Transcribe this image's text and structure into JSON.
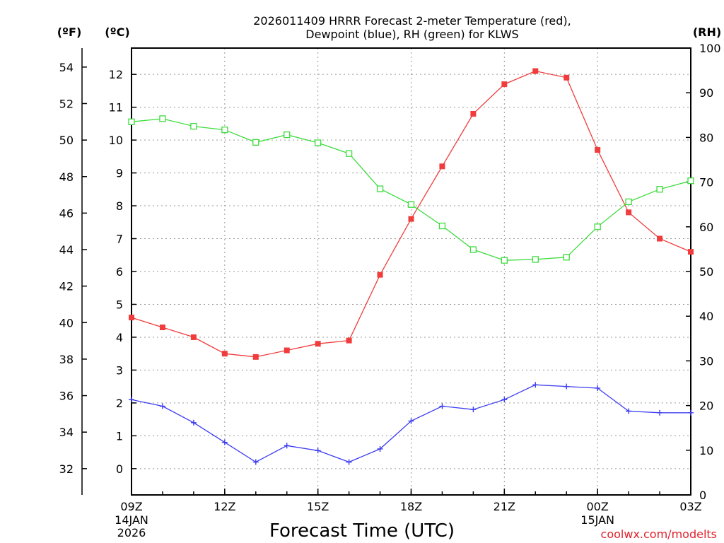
{
  "chart_data": {
    "type": "line",
    "title_line1": "2026011409 HRRR Forecast 2-meter Temperature (red),",
    "title_line2": "Dewpoint (blue), RH (green) for KLWS",
    "xlabel": "Forecast Time (UTC)",
    "credit": "coolwx.com/modelts",
    "units": {
      "fahrenheit": "(ºF)",
      "celsius": "(ºC)",
      "rh": "(RH)"
    },
    "x_hours": [
      0,
      1,
      2,
      3,
      4,
      5,
      6,
      7,
      8,
      9,
      10,
      11,
      12,
      13,
      14,
      15,
      16,
      17,
      18
    ],
    "x_range": [
      0,
      18
    ],
    "x_ticks": [
      {
        "hour": 0,
        "label": "09Z",
        "sub1": "14JAN",
        "sub2": "2026"
      },
      {
        "hour": 3,
        "label": "12Z"
      },
      {
        "hour": 6,
        "label": "15Z"
      },
      {
        "hour": 9,
        "label": "18Z"
      },
      {
        "hour": 12,
        "label": "21Z"
      },
      {
        "hour": 15,
        "label": "00Z",
        "sub1": "15JAN"
      },
      {
        "hour": 18,
        "label": "03Z"
      }
    ],
    "y_celsius": {
      "range": [
        -0.8,
        12.8
      ],
      "ticks": [
        0,
        1,
        2,
        3,
        4,
        5,
        6,
        7,
        8,
        9,
        10,
        11,
        12
      ]
    },
    "y_fahrenheit": {
      "ticks": [
        32,
        34,
        36,
        38,
        40,
        42,
        44,
        46,
        48,
        50,
        52,
        54
      ]
    },
    "y_rh": {
      "range": [
        0,
        100
      ],
      "ticks": [
        0,
        10,
        20,
        30,
        40,
        50,
        60,
        70,
        80,
        90,
        100
      ]
    },
    "series": [
      {
        "name": "Temperature",
        "unit": "C",
        "color": "#f03c3c",
        "marker": "filled-square",
        "values": [
          4.6,
          4.3,
          4.0,
          3.5,
          3.4,
          3.6,
          3.8,
          3.9,
          5.9,
          7.6,
          9.2,
          10.8,
          11.7,
          12.1,
          11.9,
          9.7,
          7.8,
          7.0,
          6.6
        ]
      },
      {
        "name": "Dewpoint",
        "unit": "C",
        "color": "#3c3cf0",
        "marker": "plus",
        "values": [
          2.1,
          1.9,
          1.4,
          0.8,
          0.2,
          0.7,
          0.55,
          0.2,
          0.6,
          1.45,
          1.9,
          1.8,
          2.1,
          2.55,
          2.5,
          2.45,
          1.75,
          1.7,
          1.7
        ]
      },
      {
        "name": "RH",
        "unit": "%",
        "color": "#3cdc3c",
        "marker": "open-square",
        "values": [
          83.5,
          84.2,
          82.5,
          81.7,
          78.9,
          80.6,
          78.8,
          76.4,
          68.5,
          65.0,
          60.2,
          54.9,
          52.5,
          52.7,
          53.2,
          60.0,
          65.6,
          68.4,
          70.3
        ]
      }
    ]
  }
}
